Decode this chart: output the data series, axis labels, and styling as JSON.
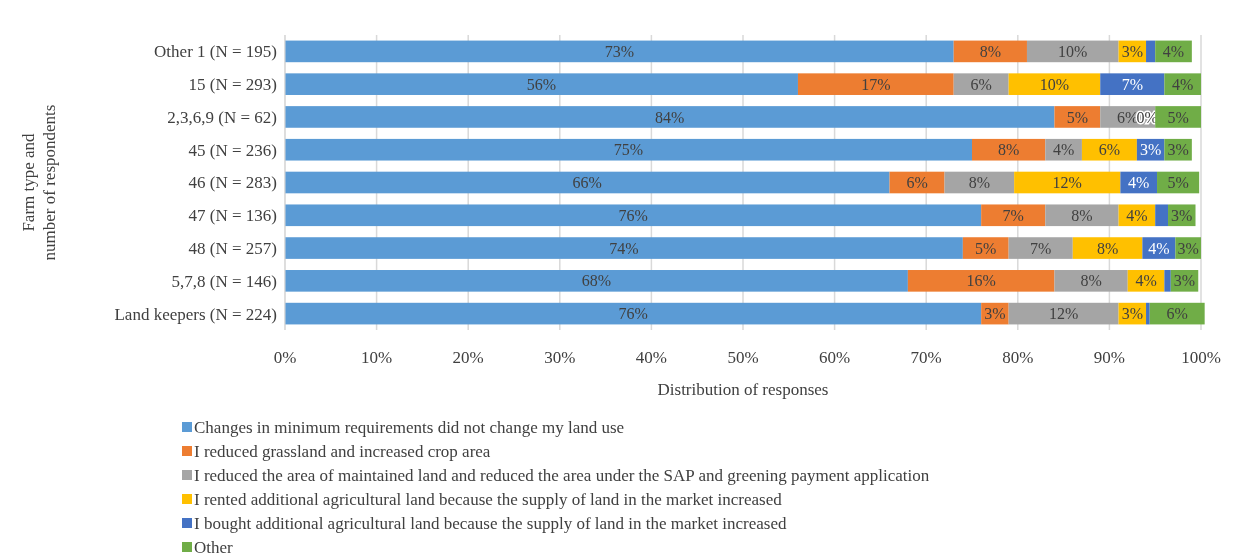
{
  "chart_data": {
    "type": "bar",
    "orientation": "horizontal",
    "stacked": true,
    "xlabel": "Distribution of responses",
    "ylabel": "Farm type and\nnumber of respondents",
    "categories": [
      "Other 1 (N = 195)",
      "15 (N = 293)",
      "2,3,6,9 (N = 62)",
      "45 (N = 236)",
      "46 (N = 283)",
      "47 (N = 136)",
      "48 (N = 257)",
      "5,7,8 (N = 146)",
      "Land keepers (N = 224)"
    ],
    "xlim": [
      0,
      100
    ],
    "xticks": [
      {
        "value": 0,
        "label": "0%"
      },
      {
        "value": 10,
        "label": "10%"
      },
      {
        "value": 20,
        "label": "20%"
      },
      {
        "value": 30,
        "label": "30%"
      },
      {
        "value": 40,
        "label": "40%"
      },
      {
        "value": 50,
        "label": "50%"
      },
      {
        "value": 60,
        "label": "60%"
      },
      {
        "value": 70,
        "label": "70%"
      },
      {
        "value": 80,
        "label": "80%"
      },
      {
        "value": 90,
        "label": "90%"
      },
      {
        "value": 100,
        "label": "100%"
      }
    ],
    "grid": "x",
    "legend": "bottom",
    "series": [
      {
        "name": "Changes in minimum requirements did not change my land use",
        "color": "#5b9bd5",
        "values": [
          73,
          56,
          84,
          75,
          66,
          76,
          74,
          68,
          76
        ],
        "value_labels": [
          "73%",
          "56%",
          "84%",
          "75%",
          "66%",
          "76%",
          "74%",
          "68%",
          "76%"
        ]
      },
      {
        "name": "I reduced grassland and increased crop area",
        "color": "#ed7d31",
        "values": [
          8,
          17,
          5,
          8,
          6,
          7,
          5,
          16,
          3
        ],
        "value_labels": [
          "8%",
          "17%",
          "5%",
          "8%",
          "6%",
          "7%",
          "5%",
          "16%",
          "3%"
        ]
      },
      {
        "name": "I reduced the area of maintained land and reduced the area under the SAP and greening payment application",
        "color": "#a5a5a5",
        "values": [
          10,
          6,
          6,
          4,
          7.6,
          8,
          7,
          8,
          12
        ],
        "value_labels": [
          "10%",
          "6%",
          "6%",
          "4%",
          "8%",
          "8%",
          "7%",
          "8%",
          "12%"
        ]
      },
      {
        "name": "I rented additional agricultural land because the supply of land in the market increased",
        "color": "#ffc000",
        "values": [
          3,
          10,
          0,
          6,
          11.6,
          4,
          7.6,
          4,
          3
        ],
        "value_labels": [
          "3%",
          "10%",
          "0%",
          "6%",
          "12%",
          "4%",
          "8%",
          "4%",
          "3%"
        ]
      },
      {
        "name": "I bought additional agricultural land because the supply of land in the market increased",
        "color": "#4472c4",
        "values": [
          1,
          7,
          0,
          3,
          4,
          1.4,
          3.6,
          0.7,
          0.4
        ],
        "value_labels": [
          null,
          "7%",
          null,
          "3%",
          "4%",
          null,
          "4%",
          null,
          null
        ]
      },
      {
        "name": "Other",
        "color": "#70ad47",
        "values": [
          4,
          4,
          5,
          3,
          4.6,
          3,
          2.8,
          3,
          6
        ],
        "value_labels": [
          "4%",
          "4%",
          "5%",
          "3%",
          "5%",
          "3%",
          "3%",
          "3%",
          "6%"
        ]
      }
    ]
  }
}
